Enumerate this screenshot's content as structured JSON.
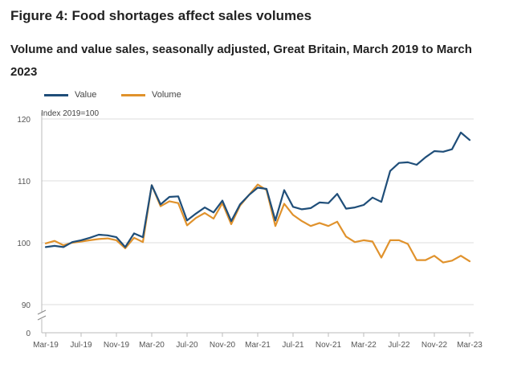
{
  "header": {
    "title": "Figure 4: Food shortages affect sales volumes",
    "subtitle": "Volume and value sales, seasonally adjusted, Great Britain, March 2019 to March 2023"
  },
  "legend": [
    {
      "name": "Value",
      "color": "#1f4e79"
    },
    {
      "name": "Volume",
      "color": "#e0922c"
    }
  ],
  "chart_data": {
    "type": "line",
    "title": "Figure 4: Food shortages affect sales volumes",
    "ylabel": "Index 2019=100",
    "xlabel": "",
    "ylim": [
      90,
      120
    ],
    "y_break_to": 0,
    "y_ticks": [
      120,
      110,
      100,
      90
    ],
    "y_zero_label": "0",
    "x": [
      "Mar-19",
      "Apr-19",
      "May-19",
      "Jun-19",
      "Jul-19",
      "Aug-19",
      "Sep-19",
      "Oct-19",
      "Nov-19",
      "Dec-19",
      "Jan-20",
      "Feb-20",
      "Mar-20",
      "Apr-20",
      "May-20",
      "Jun-20",
      "Jul-20",
      "Aug-20",
      "Sep-20",
      "Oct-20",
      "Nov-20",
      "Dec-20",
      "Jan-21",
      "Feb-21",
      "Mar-21",
      "Apr-21",
      "May-21",
      "Jun-21",
      "Jul-21",
      "Aug-21",
      "Sep-21",
      "Oct-21",
      "Nov-21",
      "Dec-21",
      "Jan-22",
      "Feb-22",
      "Mar-22",
      "Apr-22",
      "May-22",
      "Jun-22",
      "Jul-22",
      "Aug-22",
      "Sep-22",
      "Oct-22",
      "Nov-22",
      "Dec-22",
      "Jan-23",
      "Feb-23",
      "Mar-23"
    ],
    "x_tick_labels": [
      {
        "index": 0,
        "label": "Mar-19"
      },
      {
        "index": 4,
        "label": "Jul-19"
      },
      {
        "index": 8,
        "label": "Nov-19"
      },
      {
        "index": 12,
        "label": "Mar-20"
      },
      {
        "index": 16,
        "label": "Jul-20"
      },
      {
        "index": 20,
        "label": "Nov-20"
      },
      {
        "index": 24,
        "label": "Mar-21"
      },
      {
        "index": 28,
        "label": "Jul-21"
      },
      {
        "index": 32,
        "label": "Nov-21"
      },
      {
        "index": 36,
        "label": "Mar-22"
      },
      {
        "index": 40,
        "label": "Jul-22"
      },
      {
        "index": 44,
        "label": "Nov-22"
      },
      {
        "index": 48,
        "label": "Mar-23"
      }
    ],
    "series": [
      {
        "name": "Value",
        "color": "#1f4e79",
        "values": [
          99.3,
          99.5,
          99.3,
          100.1,
          100.4,
          100.8,
          101.3,
          101.2,
          100.9,
          99.3,
          101.5,
          100.9,
          109.3,
          106.2,
          107.4,
          107.5,
          103.6,
          104.7,
          105.7,
          104.9,
          106.8,
          103.5,
          106.2,
          107.7,
          108.9,
          108.7,
          103.6,
          108.5,
          105.8,
          105.4,
          105.6,
          106.5,
          106.4,
          107.9,
          105.5,
          105.7,
          106.1,
          107.3,
          106.6,
          111.6,
          112.9,
          113.0,
          112.6,
          113.8,
          114.8,
          114.7,
          115.1,
          117.8,
          116.6
        ]
      },
      {
        "name": "Volume",
        "color": "#e0922c",
        "values": [
          99.9,
          100.3,
          99.6,
          100.0,
          100.2,
          100.4,
          100.6,
          100.7,
          100.4,
          99.1,
          100.8,
          100.1,
          109.3,
          105.9,
          106.7,
          106.4,
          102.8,
          104.0,
          104.8,
          103.9,
          106.4,
          103.0,
          106.0,
          107.7,
          109.4,
          108.5,
          102.7,
          106.3,
          104.5,
          103.5,
          102.7,
          103.2,
          102.7,
          103.4,
          101.0,
          100.1,
          100.4,
          100.2,
          97.6,
          100.4,
          100.4,
          99.8,
          97.2,
          97.2,
          97.9,
          96.8,
          97.1,
          97.9,
          97.0
        ]
      }
    ]
  }
}
